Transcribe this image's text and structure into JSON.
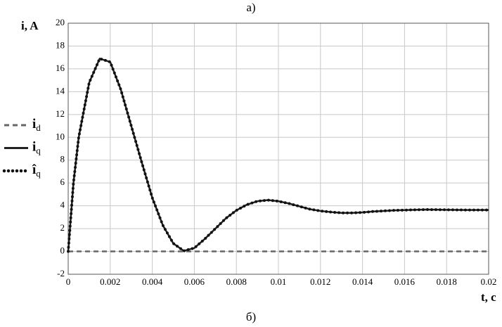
{
  "chart_data": {
    "type": "line",
    "title": "а)",
    "subtitle": "б)",
    "ylabel": "i, A",
    "xlabel": "t, c",
    "x": [
      0,
      0.00025,
      0.0005,
      0.001,
      0.0015,
      0.002,
      0.0025,
      0.003,
      0.0035,
      0.004,
      0.0045,
      0.005,
      0.0055,
      0.006,
      0.0065,
      0.007,
      0.0075,
      0.008,
      0.0085,
      0.009,
      0.0095,
      0.01,
      0.0105,
      0.011,
      0.0115,
      0.012,
      0.0125,
      0.013,
      0.0135,
      0.014,
      0.0145,
      0.015,
      0.0155,
      0.016,
      0.0165,
      0.017,
      0.0175,
      0.018,
      0.0185,
      0.019,
      0.0195,
      0.02
    ],
    "series": [
      {
        "name": "id",
        "color": "#666666",
        "style": "dashed",
        "values": [
          0,
          0,
          0,
          0,
          0,
          0,
          0,
          0,
          0,
          0,
          0,
          0,
          0,
          0,
          0,
          0,
          0,
          0,
          0,
          0,
          0,
          0,
          0,
          0,
          0,
          0,
          0,
          0,
          0,
          0,
          0,
          0,
          0,
          0,
          0,
          0,
          0,
          0,
          0,
          0,
          0,
          0
        ]
      },
      {
        "name": "iq",
        "color": "#222222",
        "style": "solid",
        "values": [
          0,
          6,
          10,
          14.8,
          16.9,
          16.6,
          14.2,
          11,
          7.8,
          4.7,
          2.3,
          0.7,
          0.05,
          0.3,
          1.1,
          2.0,
          2.9,
          3.6,
          4.1,
          4.4,
          4.5,
          4.4,
          4.2,
          3.95,
          3.7,
          3.55,
          3.45,
          3.38,
          3.38,
          3.42,
          3.5,
          3.55,
          3.6,
          3.62,
          3.65,
          3.67,
          3.66,
          3.65,
          3.64,
          3.63,
          3.63,
          3.63
        ]
      },
      {
        "name": "îq",
        "color": "#111111",
        "style": "dotted",
        "values": [
          0,
          6,
          10,
          14.8,
          16.9,
          16.6,
          14.2,
          11,
          7.8,
          4.7,
          2.3,
          0.7,
          0.05,
          0.3,
          1.1,
          2.0,
          2.9,
          3.6,
          4.1,
          4.4,
          4.5,
          4.4,
          4.2,
          3.95,
          3.7,
          3.55,
          3.45,
          3.38,
          3.38,
          3.42,
          3.5,
          3.55,
          3.6,
          3.62,
          3.65,
          3.67,
          3.66,
          3.65,
          3.64,
          3.63,
          3.63,
          3.63
        ]
      }
    ],
    "xlim": [
      0,
      0.02
    ],
    "ylim": [
      -2,
      20
    ],
    "xticks": [
      0,
      0.002,
      0.004,
      0.006,
      0.008,
      0.01,
      0.012,
      0.014,
      0.016,
      0.018,
      0.02
    ],
    "yticks": [
      -2,
      0,
      2,
      4,
      6,
      8,
      10,
      12,
      14,
      16,
      18,
      20
    ],
    "grid": true
  }
}
